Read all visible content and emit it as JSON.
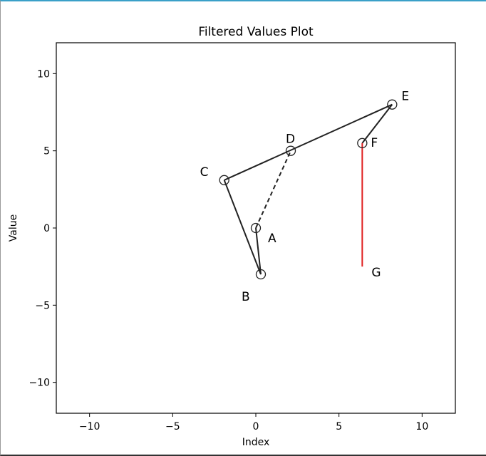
{
  "chart_data": {
    "type": "line",
    "title": "Filtered Values Plot",
    "xlabel": "Index",
    "ylabel": "Value",
    "xlim": [
      -12,
      12
    ],
    "ylim": [
      -12,
      12
    ],
    "xticks": [
      -10,
      -5,
      0,
      5,
      10
    ],
    "yticks": [
      -10,
      -5,
      0,
      5,
      10
    ],
    "xtick_labels": [
      "−10",
      "−5",
      "0",
      "5",
      "10"
    ],
    "ytick_labels": [
      "−10",
      "−5",
      "0",
      "5",
      "10"
    ],
    "grid": false,
    "points": [
      {
        "label": "A",
        "x": 0,
        "y": 0,
        "marker": true
      },
      {
        "label": "B",
        "x": 0.3,
        "y": -3,
        "marker": true
      },
      {
        "label": "C",
        "x": -1.9,
        "y": 3.1,
        "marker": true
      },
      {
        "label": "D",
        "x": 2.1,
        "y": 5.0,
        "marker": true
      },
      {
        "label": "E",
        "x": 8.2,
        "y": 8.0,
        "marker": true
      },
      {
        "label": "F",
        "x": 6.4,
        "y": 5.5,
        "marker": true
      },
      {
        "label": "G",
        "x": 6.4,
        "y": -2.5,
        "marker": false,
        "color": "#e8372f"
      }
    ],
    "segments": [
      {
        "from": "A",
        "to": "B",
        "style": "solid",
        "color": "#222222"
      },
      {
        "from": "B",
        "to": "C",
        "style": "solid",
        "color": "#222222"
      },
      {
        "from": "C",
        "to": "E",
        "style": "solid",
        "color": "#222222"
      },
      {
        "from": "E",
        "to": "F",
        "style": "solid",
        "color": "#222222"
      },
      {
        "from": "A",
        "to": "D",
        "style": "dashed",
        "color": "#222222"
      },
      {
        "from": "F",
        "to": "G",
        "style": "solid",
        "color": "#e02020"
      }
    ]
  }
}
